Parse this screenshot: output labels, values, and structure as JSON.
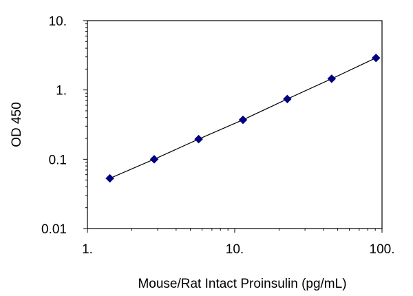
{
  "chart_data": {
    "type": "scatter",
    "title": "",
    "xlabel": "Mouse/Rat Intact Proinsulin (pg/mL)",
    "ylabel": "OD 450",
    "xscale": "log",
    "yscale": "log",
    "xlim": [
      1,
      100
    ],
    "ylim": [
      0.01,
      10
    ],
    "xticks": [
      1,
      10,
      100
    ],
    "xtick_labels": [
      "1.",
      "10.",
      "100."
    ],
    "yticks": [
      0.01,
      0.1,
      1,
      10
    ],
    "ytick_labels": [
      "0.01",
      "0.1",
      "1.",
      "10."
    ],
    "grid": false,
    "legend": "none",
    "series": [
      {
        "x": [
          1.42,
          2.84,
          5.69,
          11.38,
          22.75,
          45.5,
          91.0
        ],
        "y": [
          0.053,
          0.1,
          0.195,
          0.37,
          0.74,
          1.45,
          2.9
        ],
        "marker": "diamond",
        "color": "#000080",
        "fit_line": true
      }
    ]
  }
}
